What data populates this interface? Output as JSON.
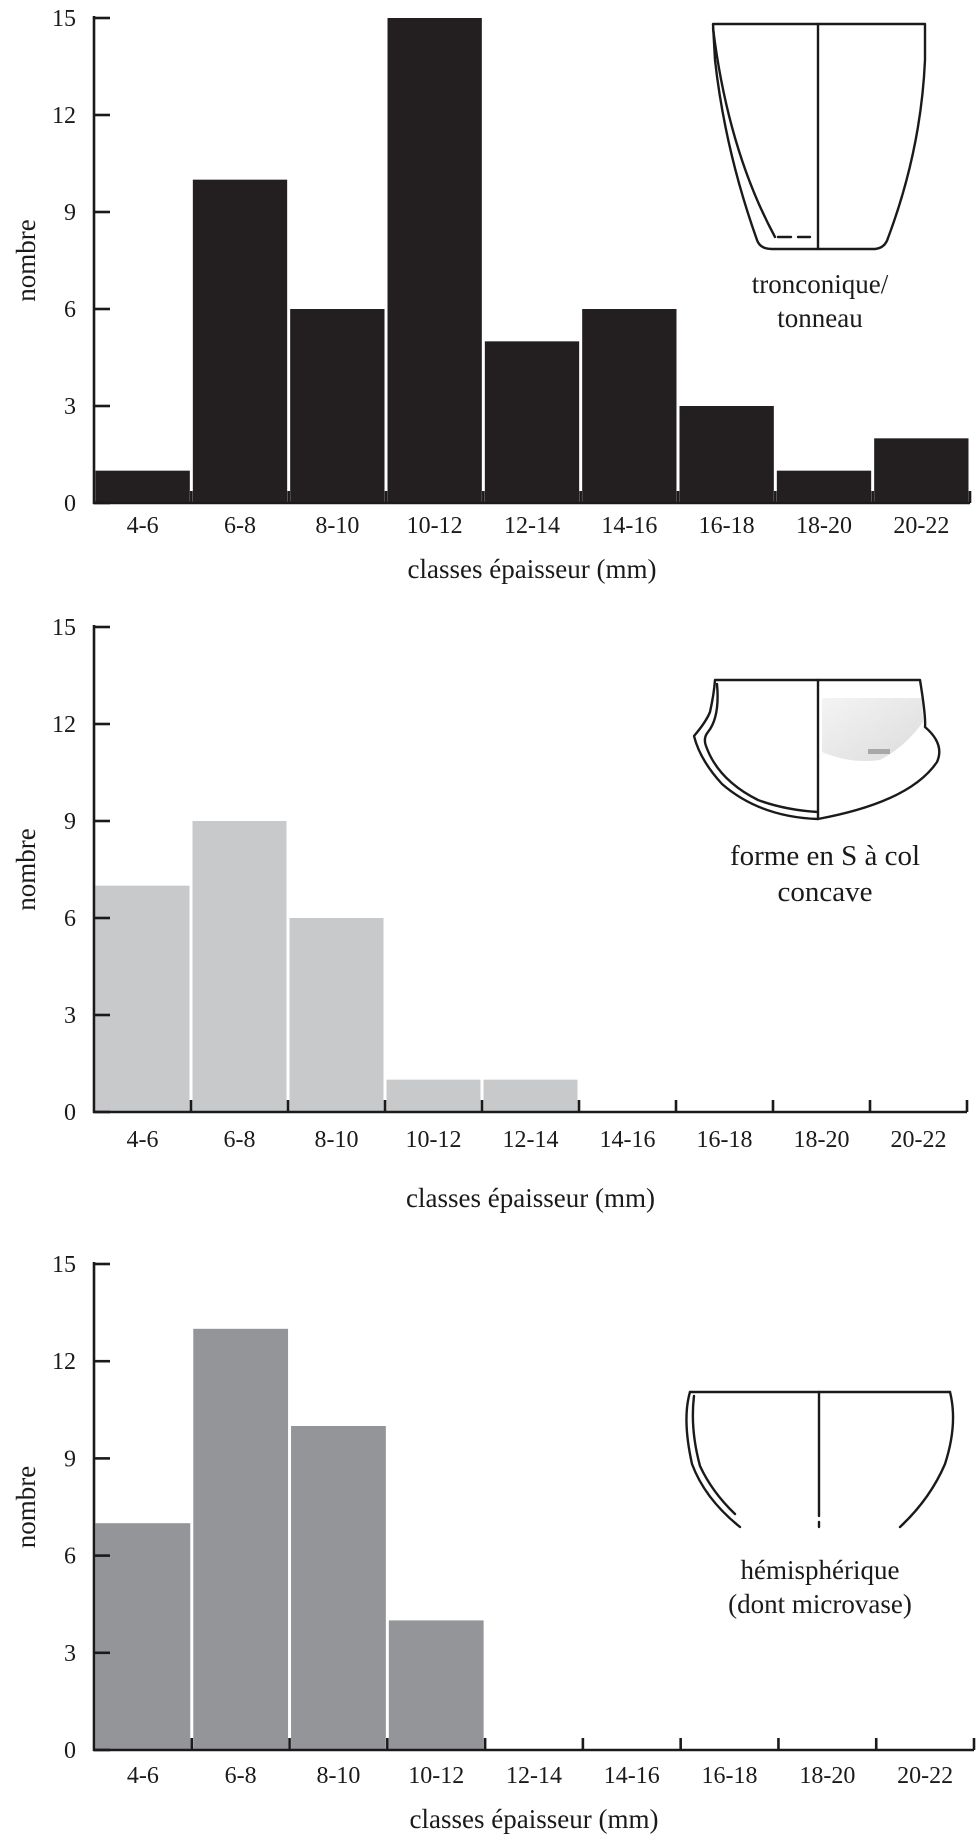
{
  "chart_data": [
    {
      "type": "bar",
      "categories": [
        "4-6",
        "6-8",
        "8-10",
        "10-12",
        "12-14",
        "14-16",
        "16-18",
        "18-20",
        "20-22"
      ],
      "values": [
        1,
        10,
        6,
        15,
        5,
        6,
        3,
        1,
        2
      ],
      "xlabel": "classes épaisseur (mm)",
      "ylabel": "nombre",
      "ylim": [
        0,
        15
      ],
      "yticks": [
        0,
        3,
        6,
        9,
        12,
        15
      ],
      "bar_color": "#231f20",
      "grid": false,
      "annotation": [
        "tronconique/",
        "tonneau"
      ]
    },
    {
      "type": "bar",
      "categories": [
        "4-6",
        "6-8",
        "8-10",
        "10-12",
        "12-14",
        "14-16",
        "16-18",
        "18-20",
        "20-22"
      ],
      "values": [
        7,
        9,
        6,
        1,
        1,
        0,
        0,
        0,
        0
      ],
      "xlabel": "classes épaisseur (mm)",
      "ylabel": "nombre",
      "ylim": [
        0,
        15
      ],
      "yticks": [
        0,
        3,
        6,
        9,
        12,
        15
      ],
      "bar_color": "#c8c9cb",
      "grid": false,
      "annotation": [
        "forme en S à col",
        "concave"
      ]
    },
    {
      "type": "bar",
      "categories": [
        "4-6",
        "6-8",
        "8-10",
        "10-12",
        "12-14",
        "14-16",
        "16-18",
        "18-20",
        "20-22"
      ],
      "values": [
        7,
        13,
        10,
        4,
        0,
        0,
        0,
        0,
        0
      ],
      "xlabel": "classes épaisseur (mm)",
      "ylabel": "nombre",
      "ylim": [
        0,
        15
      ],
      "yticks": [
        0,
        3,
        6,
        9,
        12,
        15
      ],
      "bar_color": "#939598",
      "grid": false,
      "annotation": [
        "hémisphérique",
        "(dont microvase)"
      ]
    }
  ]
}
